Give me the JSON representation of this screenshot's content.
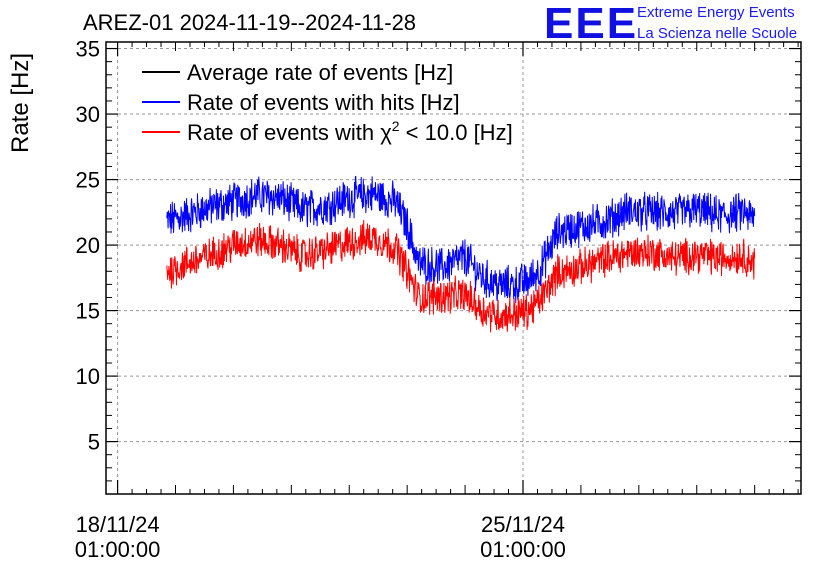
{
  "header": {
    "title": "AREZ-01 2024-11-19--2024-11-28",
    "logo": "EEE",
    "logo_line1": "Extreme Energy Events",
    "logo_line2": "La Scienza nelle Scuole"
  },
  "chart_data": {
    "type": "line",
    "title": "AREZ-01 2024-11-19--2024-11-28",
    "xlabel": "",
    "ylabel": "Rate [Hz]",
    "ylim": [
      1,
      35.5
    ],
    "yticks": [
      5,
      10,
      15,
      20,
      25,
      30,
      35
    ],
    "xlim_days": [
      -0.2,
      11.8
    ],
    "xticks": [
      {
        "day": 0,
        "line1": "18/11/24",
        "line2": "01:00:00"
      },
      {
        "day": 7,
        "line1": "25/11/24",
        "line2": "01:00:00"
      }
    ],
    "grid": true,
    "legend_position": "top-left",
    "series": [
      {
        "name": "Average rate of events [Hz]",
        "legend_text": "Average rate of events [Hz]",
        "color": "#000000",
        "x_days": [],
        "values": []
      },
      {
        "name": "Rate of events with hits [Hz]",
        "legend_text": "Rate of events with hits [Hz]",
        "color": "#0000ff",
        "noise_amplitude": 1.3,
        "x_days": [
          0.85,
          1.2,
          1.6,
          2.0,
          2.4,
          2.8,
          3.2,
          3.6,
          4.0,
          4.4,
          4.8,
          5.0,
          5.2,
          5.6,
          6.0,
          6.3,
          6.6,
          6.9,
          7.1,
          7.3,
          7.6,
          8.0,
          8.4,
          8.8,
          9.2,
          9.6,
          10.0,
          10.4,
          10.8,
          11.0
        ],
        "values": [
          21.8,
          22.3,
          22.9,
          23.3,
          23.8,
          23.6,
          22.7,
          23.0,
          23.6,
          23.9,
          23.3,
          21.5,
          18.6,
          18.3,
          19.1,
          17.5,
          16.9,
          17.0,
          17.3,
          18.2,
          21.0,
          21.4,
          21.8,
          22.6,
          22.5,
          22.4,
          22.7,
          22.2,
          22.5,
          22.0
        ]
      },
      {
        "name": "Rate of events with χ² < 10.0 [Hz]",
        "legend_prefix": "Rate of events with χ",
        "legend_sup": "2",
        "legend_suffix": " < 10.0 [Hz]",
        "color": "#ff0000",
        "noise_amplitude": 1.2,
        "x_days": [
          0.85,
          1.2,
          1.6,
          2.0,
          2.4,
          2.8,
          3.2,
          3.6,
          4.0,
          4.4,
          4.8,
          5.0,
          5.2,
          5.6,
          6.0,
          6.3,
          6.6,
          6.9,
          7.1,
          7.3,
          7.6,
          8.0,
          8.4,
          8.8,
          9.2,
          9.6,
          10.0,
          10.4,
          10.8,
          11.0
        ],
        "values": [
          18.0,
          18.6,
          19.2,
          20.0,
          20.4,
          20.0,
          19.2,
          19.6,
          20.2,
          20.6,
          19.8,
          18.0,
          16.0,
          16.1,
          16.2,
          15.0,
          14.6,
          14.8,
          15.0,
          15.8,
          17.9,
          18.3,
          18.9,
          19.4,
          19.5,
          19.0,
          19.3,
          19.0,
          19.2,
          18.6
        ]
      }
    ]
  }
}
